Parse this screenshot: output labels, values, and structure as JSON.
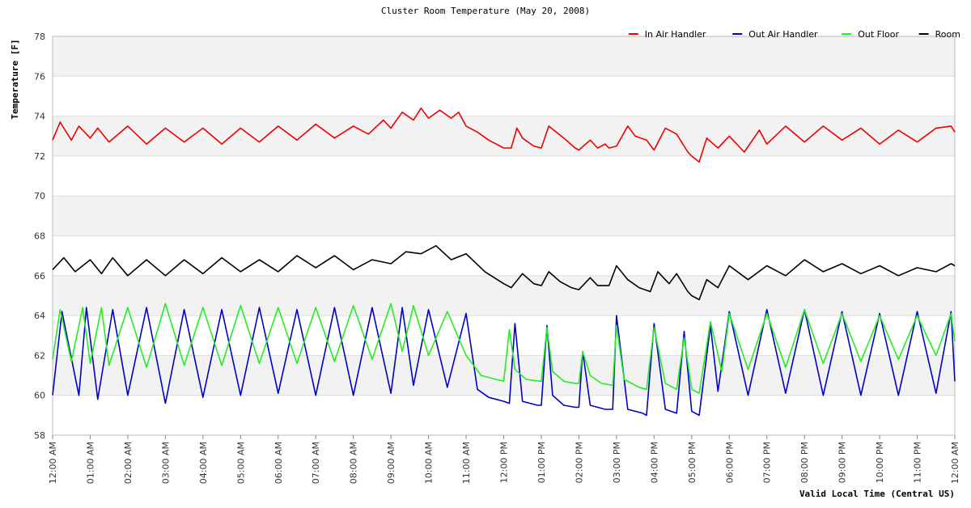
{
  "chart_data": {
    "type": "line",
    "title": "Cluster Room Temperature (May 20, 2008)",
    "xlabel": "Valid Local Time (Central US)",
    "ylabel": "Temperature [F]",
    "ylim": [
      58,
      78
    ],
    "xlim": [
      0,
      24
    ],
    "y_ticks": [
      "58",
      "60",
      "62",
      "64",
      "66",
      "68",
      "70",
      "72",
      "74",
      "76",
      "78"
    ],
    "x_ticks": [
      "12:00 AM",
      "01:00 AM",
      "02:00 AM",
      "03:00 AM",
      "04:00 AM",
      "05:00 AM",
      "06:00 AM",
      "07:00 AM",
      "08:00 AM",
      "09:00 AM",
      "10:00 AM",
      "11:00 AM",
      "12:00 PM",
      "01:00 PM",
      "02:00 PM",
      "03:00 PM",
      "04:00 PM",
      "05:00 PM",
      "06:00 PM",
      "07:00 PM",
      "08:00 PM",
      "09:00 PM",
      "10:00 PM",
      "11:00 PM",
      "12:00 AM"
    ],
    "grid": true,
    "legend_position": "top-right",
    "series": [
      {
        "name": "In Air Handler",
        "color": "#ee0000",
        "x": [
          0,
          0.2,
          0.5,
          0.7,
          1.0,
          1.2,
          1.5,
          2.0,
          2.5,
          3.0,
          3.5,
          4.0,
          4.5,
          5.0,
          5.5,
          6.0,
          6.5,
          7.0,
          7.5,
          8.0,
          8.4,
          8.8,
          9.0,
          9.3,
          9.6,
          9.8,
          10.0,
          10.3,
          10.6,
          10.8,
          11.0,
          11.3,
          11.6,
          11.8,
          12.0,
          12.2,
          12.35,
          12.5,
          12.8,
          13.0,
          13.2,
          13.6,
          13.9,
          14.0,
          14.3,
          14.5,
          14.7,
          14.8,
          15.0,
          15.3,
          15.5,
          15.8,
          16.0,
          16.3,
          16.6,
          16.9,
          17.0,
          17.2,
          17.4,
          17.7,
          18.0,
          18.4,
          18.8,
          19.0,
          19.5,
          20.0,
          20.5,
          21.0,
          21.5,
          22.0,
          22.5,
          23.0,
          23.5,
          23.9,
          24.0
        ],
        "y": [
          72.8,
          73.7,
          72.8,
          73.5,
          72.9,
          73.4,
          72.7,
          73.5,
          72.6,
          73.4,
          72.7,
          73.4,
          72.6,
          73.4,
          72.7,
          73.5,
          72.8,
          73.6,
          72.9,
          73.5,
          73.1,
          73.8,
          73.4,
          74.2,
          73.8,
          74.4,
          73.9,
          74.3,
          73.9,
          74.2,
          73.5,
          73.2,
          72.8,
          72.6,
          72.4,
          72.4,
          73.4,
          72.9,
          72.5,
          72.4,
          73.5,
          72.9,
          72.4,
          72.3,
          72.8,
          72.4,
          72.6,
          72.4,
          72.5,
          73.5,
          73.0,
          72.8,
          72.3,
          73.4,
          73.1,
          72.2,
          72.0,
          71.7,
          72.9,
          72.4,
          73.0,
          72.2,
          73.3,
          72.6,
          73.5,
          72.7,
          73.5,
          72.8,
          73.4,
          72.6,
          73.3,
          72.7,
          73.4,
          73.5,
          73.2
        ]
      },
      {
        "name": "Out Air Handler",
        "color": "#0000cc",
        "x": [
          0,
          0.25,
          0.7,
          0.9,
          1.2,
          1.6,
          2.0,
          2.5,
          3.0,
          3.5,
          4.0,
          4.5,
          5.0,
          5.5,
          6.0,
          6.5,
          7.0,
          7.5,
          8.0,
          8.5,
          9.0,
          9.3,
          9.6,
          10.0,
          10.5,
          11.0,
          11.3,
          11.6,
          12.0,
          12.15,
          12.3,
          12.5,
          12.9,
          13.0,
          13.15,
          13.3,
          13.6,
          13.9,
          14.0,
          14.1,
          14.3,
          14.7,
          14.9,
          15.0,
          15.3,
          15.7,
          15.8,
          16.0,
          16.3,
          16.6,
          16.8,
          17.0,
          17.2,
          17.5,
          17.7,
          18.0,
          18.5,
          19.0,
          19.5,
          20.0,
          20.5,
          21.0,
          21.5,
          22.0,
          22.5,
          23.0,
          23.5,
          23.9,
          24.0
        ],
        "y": [
          60.0,
          64.2,
          60.0,
          64.4,
          59.8,
          64.3,
          60.0,
          64.4,
          59.6,
          64.3,
          59.9,
          64.3,
          60.0,
          64.4,
          60.1,
          64.3,
          60.0,
          64.4,
          60.0,
          64.4,
          60.1,
          64.4,
          60.5,
          64.3,
          60.4,
          64.1,
          60.3,
          59.9,
          59.7,
          59.6,
          63.6,
          59.7,
          59.5,
          59.5,
          63.5,
          60.0,
          59.5,
          59.4,
          59.4,
          62.2,
          59.5,
          59.3,
          59.3,
          64.0,
          59.3,
          59.1,
          59.0,
          63.6,
          59.3,
          59.1,
          63.2,
          59.2,
          59.0,
          63.5,
          60.2,
          64.2,
          60.0,
          64.3,
          60.1,
          64.3,
          60.0,
          64.2,
          60.0,
          64.1,
          60.0,
          64.2,
          60.1,
          64.2,
          60.7
        ]
      },
      {
        "name": "Out Floor",
        "color": "#22ee22",
        "x": [
          0,
          0.2,
          0.5,
          0.8,
          1.0,
          1.3,
          1.5,
          2.0,
          2.5,
          3.0,
          3.5,
          4.0,
          4.5,
          5.0,
          5.5,
          6.0,
          6.5,
          7.0,
          7.5,
          8.0,
          8.5,
          9.0,
          9.3,
          9.6,
          10.0,
          10.5,
          11.0,
          11.4,
          11.8,
          12.0,
          12.15,
          12.3,
          12.6,
          13.0,
          13.15,
          13.3,
          13.6,
          13.9,
          14.0,
          14.1,
          14.3,
          14.6,
          14.9,
          15.0,
          15.2,
          15.6,
          15.8,
          16.0,
          16.3,
          16.6,
          16.8,
          17.0,
          17.2,
          17.5,
          17.8,
          18.0,
          18.5,
          19.0,
          19.5,
          20.0,
          20.5,
          21.0,
          21.5,
          22.0,
          22.5,
          23.0,
          23.5,
          23.9,
          24.0
        ],
        "y": [
          61.8,
          64.3,
          61.7,
          64.4,
          61.6,
          64.4,
          61.5,
          64.4,
          61.4,
          64.6,
          61.5,
          64.4,
          61.5,
          64.5,
          61.6,
          64.4,
          61.6,
          64.4,
          61.7,
          64.5,
          61.8,
          64.6,
          62.2,
          64.5,
          62.0,
          64.2,
          62.0,
          61.0,
          60.8,
          60.7,
          63.3,
          61.3,
          60.8,
          60.7,
          63.4,
          61.2,
          60.7,
          60.6,
          60.6,
          62.2,
          61.0,
          60.6,
          60.5,
          63.5,
          60.8,
          60.4,
          60.3,
          63.4,
          60.6,
          60.3,
          62.9,
          60.3,
          60.1,
          63.7,
          61.2,
          64.1,
          61.3,
          64.1,
          61.4,
          64.3,
          61.6,
          64.1,
          61.7,
          64.0,
          61.8,
          64.0,
          62.0,
          64.1,
          62.7
        ]
      },
      {
        "name": "Room",
        "color": "#000000",
        "x": [
          0,
          0.3,
          0.6,
          1.0,
          1.3,
          1.6,
          2.0,
          2.5,
          3.0,
          3.5,
          4.0,
          4.5,
          5.0,
          5.5,
          6.0,
          6.5,
          7.0,
          7.5,
          8.0,
          8.5,
          9.0,
          9.4,
          9.8,
          10.2,
          10.6,
          11.0,
          11.5,
          12.0,
          12.2,
          12.5,
          12.8,
          13.0,
          13.2,
          13.5,
          13.8,
          14.0,
          14.3,
          14.5,
          14.8,
          15.0,
          15.3,
          15.6,
          15.9,
          16.1,
          16.4,
          16.6,
          16.9,
          17.0,
          17.2,
          17.4,
          17.7,
          18.0,
          18.5,
          19.0,
          19.5,
          20.0,
          20.5,
          21.0,
          21.5,
          22.0,
          22.5,
          23.0,
          23.5,
          23.9,
          24.0
        ],
        "y": [
          66.3,
          66.9,
          66.2,
          66.8,
          66.1,
          66.9,
          66.0,
          66.8,
          66.0,
          66.8,
          66.1,
          66.9,
          66.2,
          66.8,
          66.2,
          67.0,
          66.4,
          67.0,
          66.3,
          66.8,
          66.6,
          67.2,
          67.1,
          67.5,
          66.8,
          67.1,
          66.2,
          65.6,
          65.4,
          66.1,
          65.6,
          65.5,
          66.2,
          65.7,
          65.4,
          65.3,
          65.9,
          65.5,
          65.5,
          66.5,
          65.8,
          65.4,
          65.2,
          66.2,
          65.6,
          66.1,
          65.2,
          65.0,
          64.8,
          65.8,
          65.4,
          66.5,
          65.8,
          66.5,
          66.0,
          66.8,
          66.2,
          66.6,
          66.1,
          66.5,
          66.0,
          66.4,
          66.2,
          66.6,
          66.5
        ]
      }
    ]
  }
}
